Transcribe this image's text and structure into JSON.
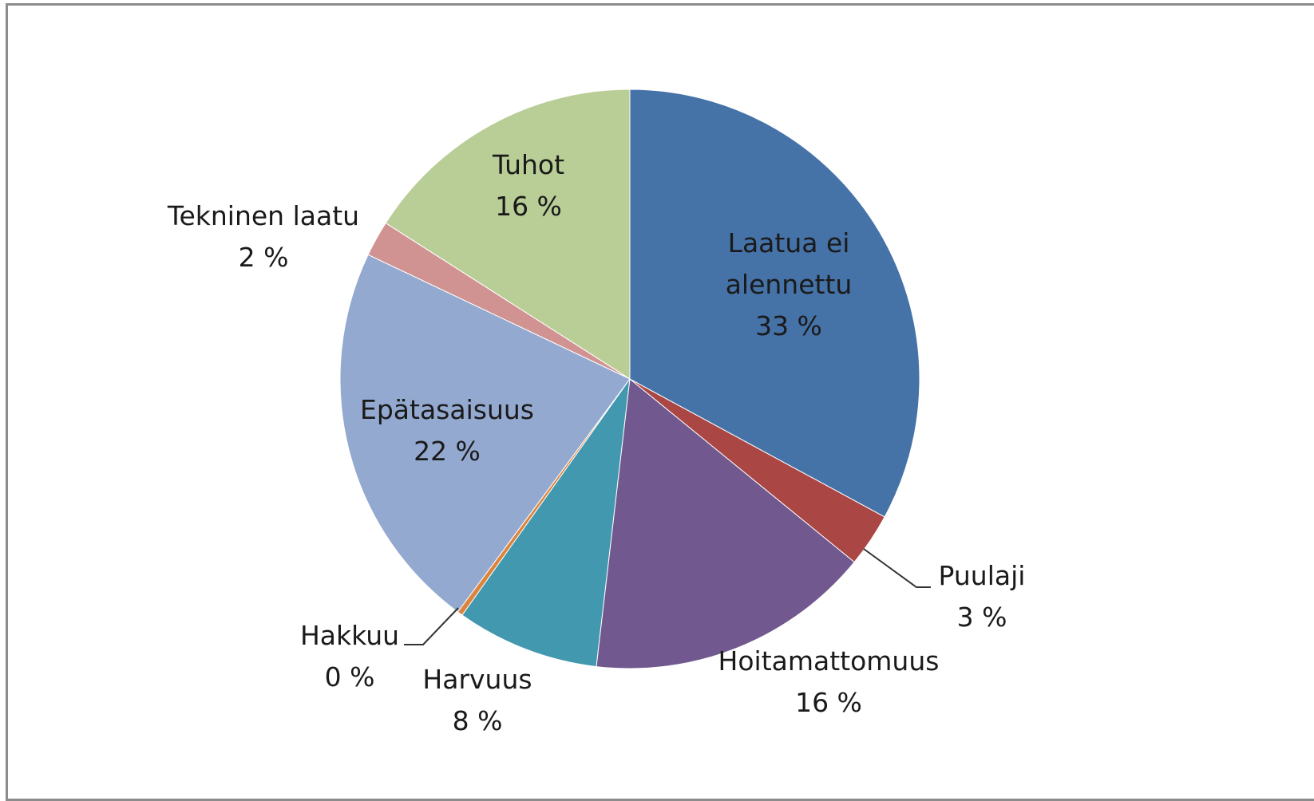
{
  "chart_data": {
    "type": "pie",
    "categories": [
      "Laatua ei alennettu",
      "Puulaji",
      "Hoitamattomuus",
      "Harvuus",
      "Hakkuu",
      "Epätasaisuus",
      "Tekninen laatu",
      "Tuhot"
    ],
    "values": [
      33,
      3,
      16,
      8,
      0.3,
      22,
      2,
      16
    ],
    "value_labels": [
      "33 %",
      "3 %",
      "16 %",
      "8 %",
      "0 %",
      "22 %",
      "2 %",
      "16 %"
    ],
    "colors": [
      "#4572a7",
      "#aa4643",
      "#71588f",
      "#4198af",
      "#db843d",
      "#93a9cf",
      "#d19392",
      "#b9cd96"
    ]
  }
}
